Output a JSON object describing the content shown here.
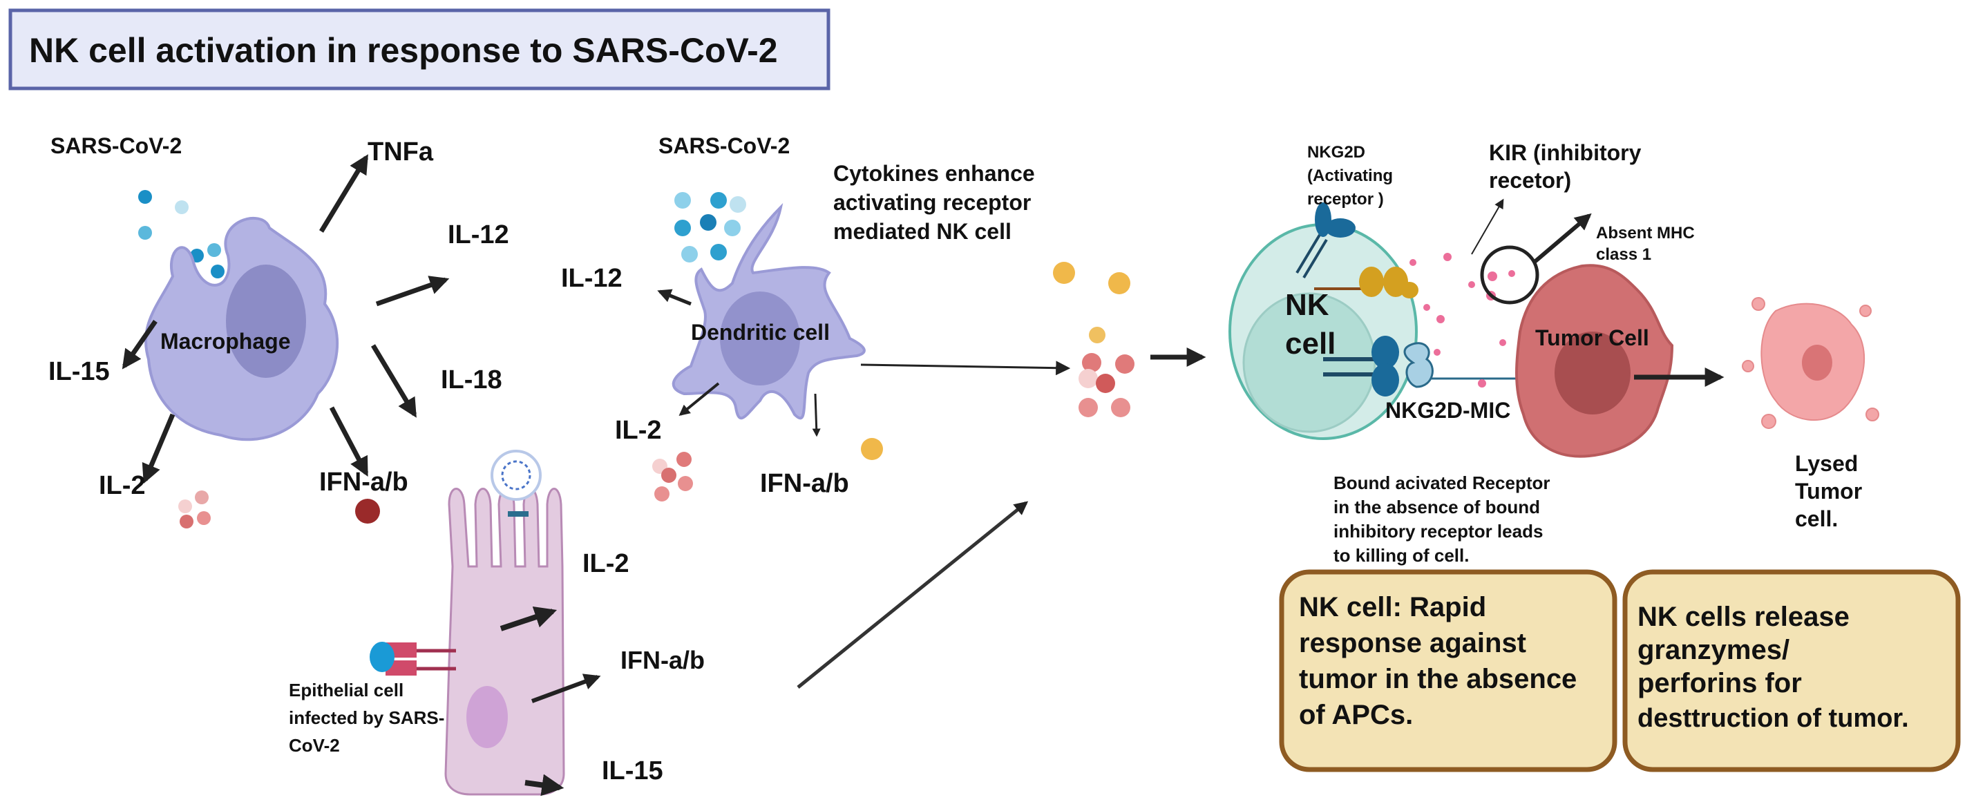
{
  "title": "NK cell activation in response to SARS-CoV-2",
  "macrophage_panel": {
    "virus_label": "SARS-CoV-2",
    "cell_label": "Macrophage",
    "outputs": [
      "TNFa",
      "IL-12",
      "IL-15",
      "IL-18",
      "IL-2",
      "IFN-a/b"
    ]
  },
  "dendritic_panel": {
    "virus_label": "SARS-CoV-2",
    "cell_label": "Dendritic cell",
    "outputs": [
      "IL-12",
      "IL-2",
      "IFN-a/b"
    ]
  },
  "epithelial_panel": {
    "cell_label_lines": [
      "Epithelial cell",
      "infected by SARS-",
      "CoV-2"
    ],
    "outputs": [
      "IL-2",
      "IFN-a/b",
      "IL-15"
    ]
  },
  "cytokines_note": [
    "Cytokines enhance",
    "activating receptor",
    "mediated NK cell"
  ],
  "nk_panel": {
    "nk_label_lines": [
      "NK",
      "cell"
    ],
    "nkg2d_lines": [
      "NKG2D",
      "(Activating",
      "receptor )"
    ],
    "kir_lines": [
      "KIR (inhibitory",
      "recetor)"
    ],
    "mhc_lines": [
      "Absent MHC",
      "class 1"
    ],
    "tumor_label": "Tumor Cell",
    "complex_label": "NKG2D-MIC",
    "lysed_lines": [
      "Lysed",
      "Tumor",
      "cell."
    ],
    "bound_note_lines": [
      "Bound acivated Receptor",
      "in the absence of bound",
      "inhibitory receptor leads",
      "to killing of cell."
    ]
  },
  "boxes": [
    {
      "lines": [
        "NK cell: Rapid",
        "response against",
        "tumor in the absence",
        "of APCs."
      ]
    },
    {
      "lines": [
        "NK cells release",
        "granzymes/",
        "perforins for",
        "desttruction of tumor."
      ]
    }
  ],
  "colors": {
    "title_bg": "#e6e9f8",
    "title_border": "#5a64a8",
    "macrophage": "#b3b3e3",
    "nk_cell": "#d3ece8",
    "tumor": "#d07072",
    "box_bg": "#f3e3b5",
    "box_border": "#8e5b22",
    "epithelial": "#e3cbe0"
  }
}
